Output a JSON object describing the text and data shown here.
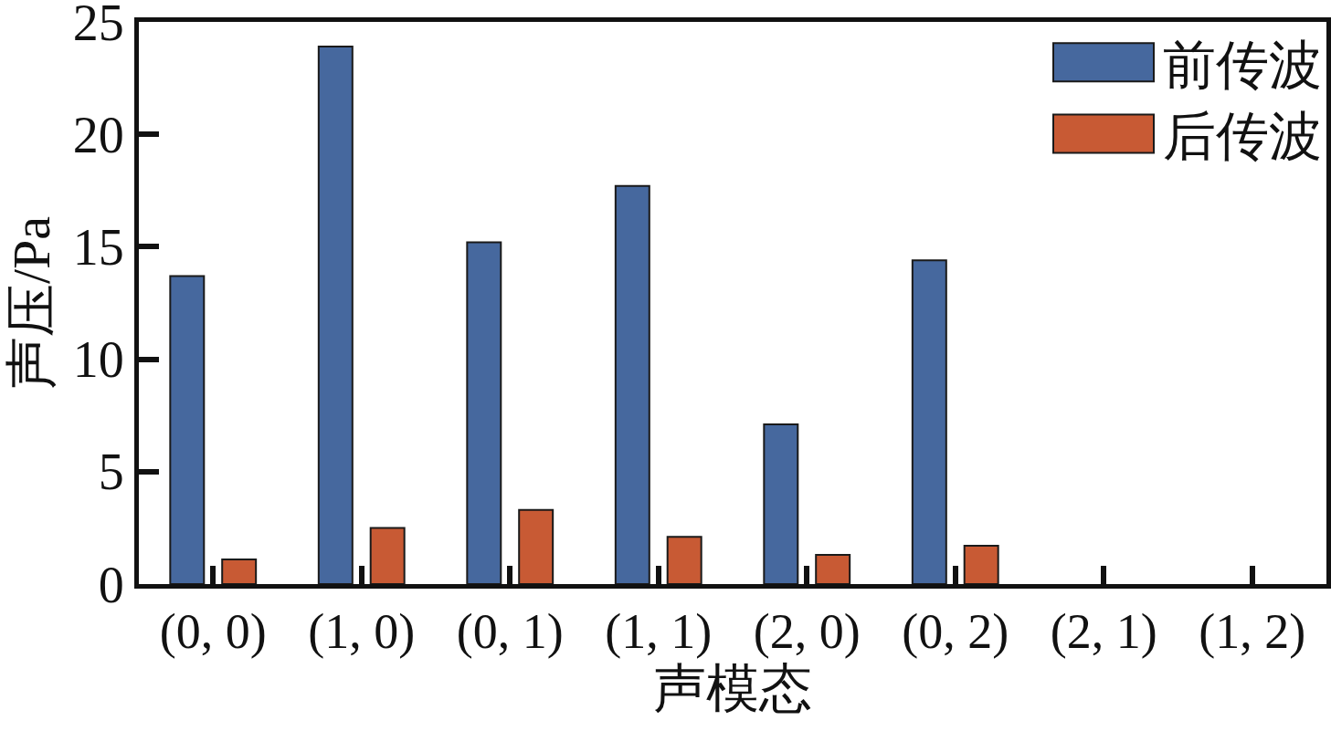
{
  "chart_data": {
    "type": "bar",
    "xlabel": "声模态",
    "ylabel": "声压/Pa",
    "categories": [
      "(0, 0)",
      "(1, 0)",
      "(0, 1)",
      "(1, 1)",
      "(2, 0)",
      "(0, 2)",
      "(2, 1)",
      "(1, 2)"
    ],
    "series": [
      {
        "name": "前传波",
        "color": "#46689e",
        "values": [
          13.7,
          23.9,
          15.2,
          17.7,
          7.1,
          14.4,
          null,
          null
        ]
      },
      {
        "name": "后传波",
        "color": "#c85a34",
        "values": [
          1.1,
          2.5,
          3.3,
          2.1,
          1.3,
          1.7,
          null,
          null
        ]
      }
    ],
    "ylim": [
      0,
      25
    ],
    "yticks": [
      0,
      5,
      10,
      15,
      20,
      25
    ],
    "legend": "top right"
  }
}
